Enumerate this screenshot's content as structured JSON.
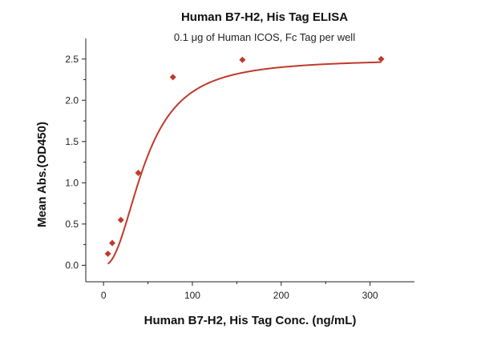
{
  "chart_data": {
    "type": "scatter",
    "title": "Human B7-H2, His Tag ELISA",
    "subtitle": "0.1 μg of Human ICOS, Fc Tag per well",
    "xlabel": "Human B7-H2, His Tag Conc. (ng/mL)",
    "ylabel": "Mean Abs.(OD450)",
    "xlim": [
      -20,
      350
    ],
    "ylim": [
      -0.2,
      2.75
    ],
    "x_ticks": [
      0,
      100,
      200,
      300
    ],
    "y_ticks": [
      0.0,
      0.5,
      1.0,
      1.5,
      2.0,
      2.5
    ],
    "x_tick_labels": [
      "0",
      "100",
      "200",
      "300"
    ],
    "y_tick_labels": [
      "0.0",
      "0.5",
      "1.0",
      "1.5",
      "2.0",
      "2.5"
    ],
    "grid": false,
    "color": "#c0392b",
    "marker": "diamond",
    "series": [
      {
        "x": [
          4.9,
          9.8,
          19.5,
          39.1,
          78.1,
          156.3,
          312.5
        ],
        "y": [
          0.14,
          0.27,
          0.55,
          1.12,
          2.28,
          2.49,
          2.5
        ]
      }
    ],
    "fit_curve": {
      "type": "4PL",
      "bottom": 0.0,
      "top": 2.5,
      "ec50": 47,
      "hill": 2.2
    }
  }
}
